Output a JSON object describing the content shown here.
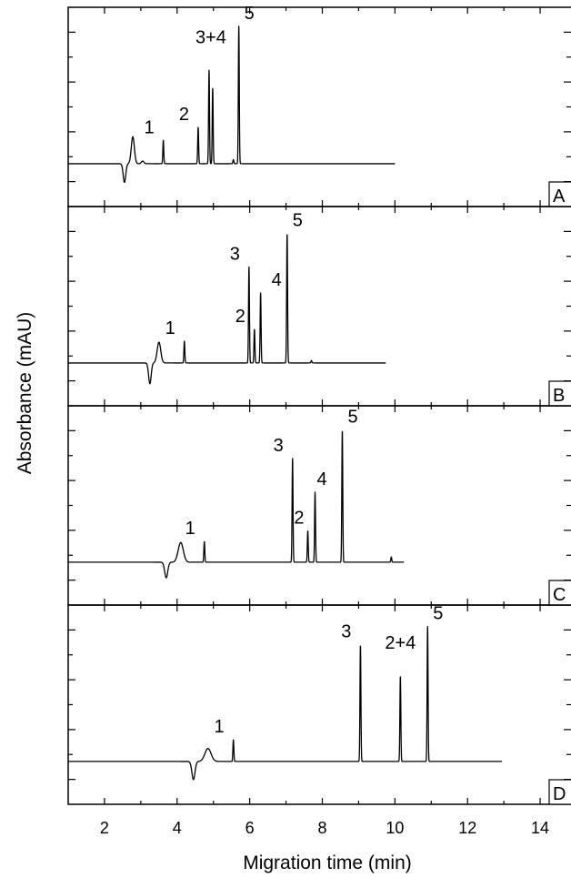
{
  "chart_data": {
    "type": "line",
    "xlabel": "Migration time (min)",
    "ylabel": "Absorbance (mAU)",
    "xlim": [
      1,
      14.9
    ],
    "x_ticks": [
      2,
      4,
      6,
      8,
      10,
      12,
      14
    ],
    "grid": false,
    "panels": [
      {
        "id": "A",
        "x_end": 10.0,
        "baseline_features": [
          {
            "t": 2.55,
            "h": -0.36,
            "w": 0.05
          },
          {
            "t": 2.78,
            "h": 0.52,
            "w": 0.06
          },
          {
            "t": 3.05,
            "h": 0.05,
            "w": 0.05
          }
        ],
        "peaks": [
          {
            "label": "1",
            "t": 3.62,
            "h": 0.45
          },
          {
            "label": "2",
            "t": 4.58,
            "h": 0.7
          },
          {
            "label": "3+4",
            "t": 4.88,
            "h": 1.8
          },
          {
            "label": "",
            "t": 4.98,
            "h": 1.45
          },
          {
            "label": "5",
            "t": 5.7,
            "h": 2.65
          },
          {
            "label": "",
            "t": 5.55,
            "h": 0.08
          }
        ]
      },
      {
        "id": "B",
        "x_end": 9.75,
        "baseline_features": [
          {
            "t": 3.25,
            "h": -0.4,
            "w": 0.05
          },
          {
            "t": 3.5,
            "h": 0.4,
            "w": 0.07
          }
        ],
        "peaks": [
          {
            "label": "1",
            "t": 4.2,
            "h": 0.42
          },
          {
            "label": "3",
            "t": 5.98,
            "h": 1.85
          },
          {
            "label": "2",
            "t": 6.13,
            "h": 0.65
          },
          {
            "label": "4",
            "t": 6.3,
            "h": 1.35
          },
          {
            "label": "5",
            "t": 7.03,
            "h": 2.5
          },
          {
            "label": "",
            "t": 7.7,
            "h": 0.05
          }
        ]
      },
      {
        "id": "C",
        "x_end": 10.25,
        "baseline_features": [
          {
            "t": 3.7,
            "h": -0.3,
            "w": 0.06
          },
          {
            "t": 4.1,
            "h": 0.38,
            "w": 0.1
          }
        ],
        "peaks": [
          {
            "label": "1",
            "t": 4.75,
            "h": 0.4
          },
          {
            "label": "3",
            "t": 7.18,
            "h": 2.0
          },
          {
            "label": "2",
            "t": 7.6,
            "h": 0.6
          },
          {
            "label": "4",
            "t": 7.8,
            "h": 1.35
          },
          {
            "label": "5",
            "t": 8.55,
            "h": 2.55
          },
          {
            "label": "",
            "t": 9.9,
            "h": 0.1
          }
        ]
      },
      {
        "id": "D",
        "x_end": 12.95,
        "baseline_features": [
          {
            "t": 4.45,
            "h": -0.35,
            "w": 0.06
          },
          {
            "t": 4.85,
            "h": 0.25,
            "w": 0.12
          }
        ],
        "peaks": [
          {
            "label": "1",
            "t": 5.55,
            "h": 0.42
          },
          {
            "label": "3",
            "t": 9.05,
            "h": 2.25
          },
          {
            "label": "2+4",
            "t": 10.15,
            "h": 1.65
          },
          {
            "label": "5",
            "t": 10.9,
            "h": 2.6
          }
        ]
      }
    ]
  }
}
